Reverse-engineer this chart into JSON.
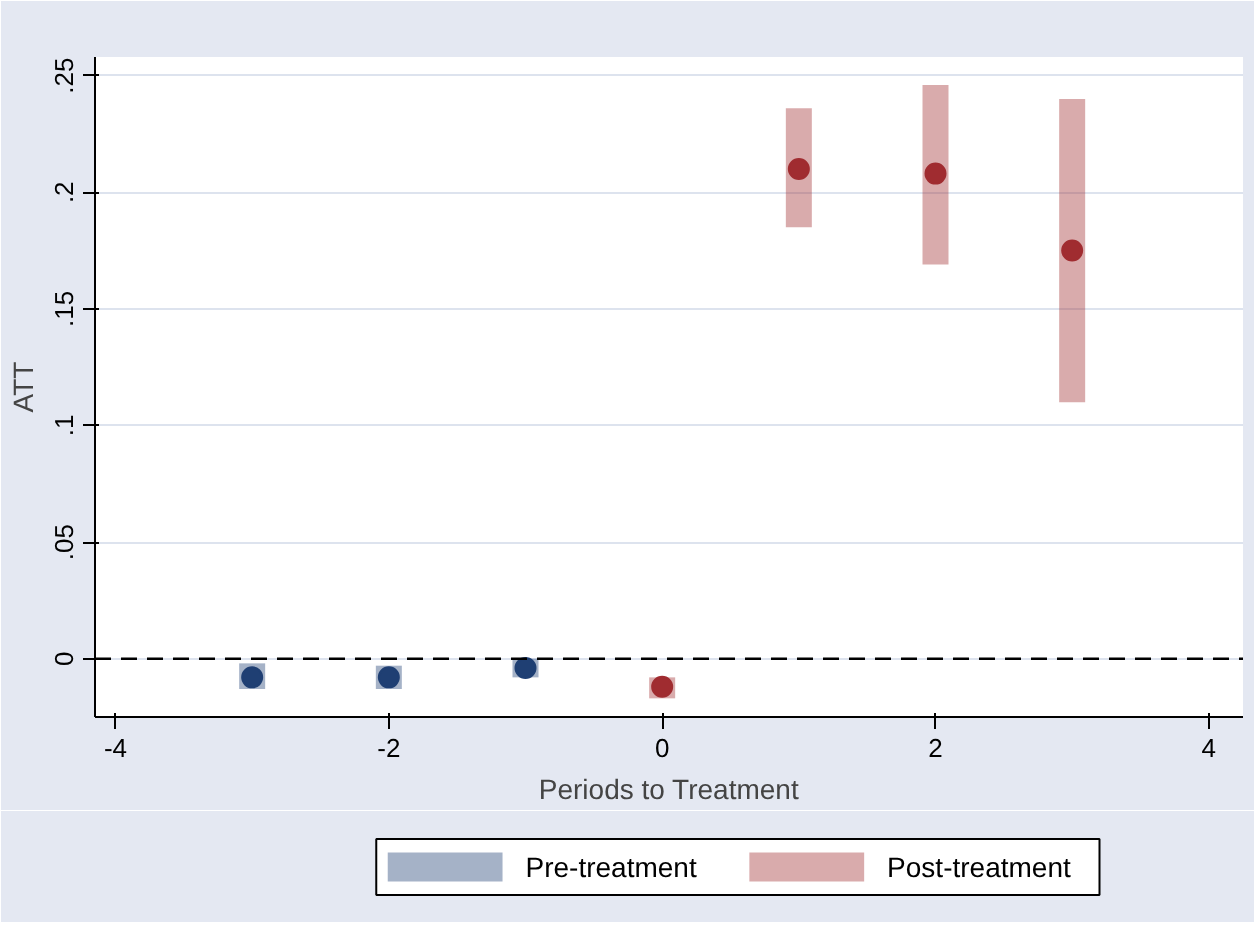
{
  "chart_data": {
    "type": "scatter",
    "xlabel": "Periods to Treatment",
    "ylabel": "ATT",
    "xlim": [
      -4.15,
      4.25
    ],
    "xticks": [
      -4,
      -2,
      0,
      2,
      4
    ],
    "ylim": [
      -0.025,
      0.258
    ],
    "yticks": [
      {
        "value": 0,
        "label": "0"
      },
      {
        "value": 0.05,
        "label": ".05"
      },
      {
        "value": 0.1,
        "label": ".1"
      },
      {
        "value": 0.15,
        "label": ".15"
      },
      {
        "value": 0.2,
        "label": ".2"
      },
      {
        "value": 0.25,
        "label": ".25"
      }
    ],
    "grid": "y",
    "legend": "bottom",
    "marker": "circle",
    "ref_lines": [
      {
        "axis": "y",
        "value": 0,
        "line_style": "dashed",
        "color": "#000000"
      }
    ],
    "series": [
      {
        "name": "Pre-treatment",
        "color": "#1f3f73",
        "x": [
          -3,
          -2,
          -1
        ],
        "values": [
          -0.008,
          -0.008,
          -0.004
        ],
        "errors": [
          [
            -0.013,
            -0.002
          ],
          [
            -0.013,
            -0.003
          ],
          [
            -0.008,
            0.0
          ]
        ]
      },
      {
        "name": "Post-treatment",
        "color": "#a02c30",
        "x": [
          0,
          1,
          2,
          3
        ],
        "values": [
          -0.012,
          0.21,
          0.208,
          0.175
        ],
        "errors": [
          [
            -0.017,
            -0.008
          ],
          [
            0.185,
            0.236
          ],
          [
            0.169,
            0.246
          ],
          [
            0.11,
            0.24
          ]
        ]
      }
    ]
  }
}
